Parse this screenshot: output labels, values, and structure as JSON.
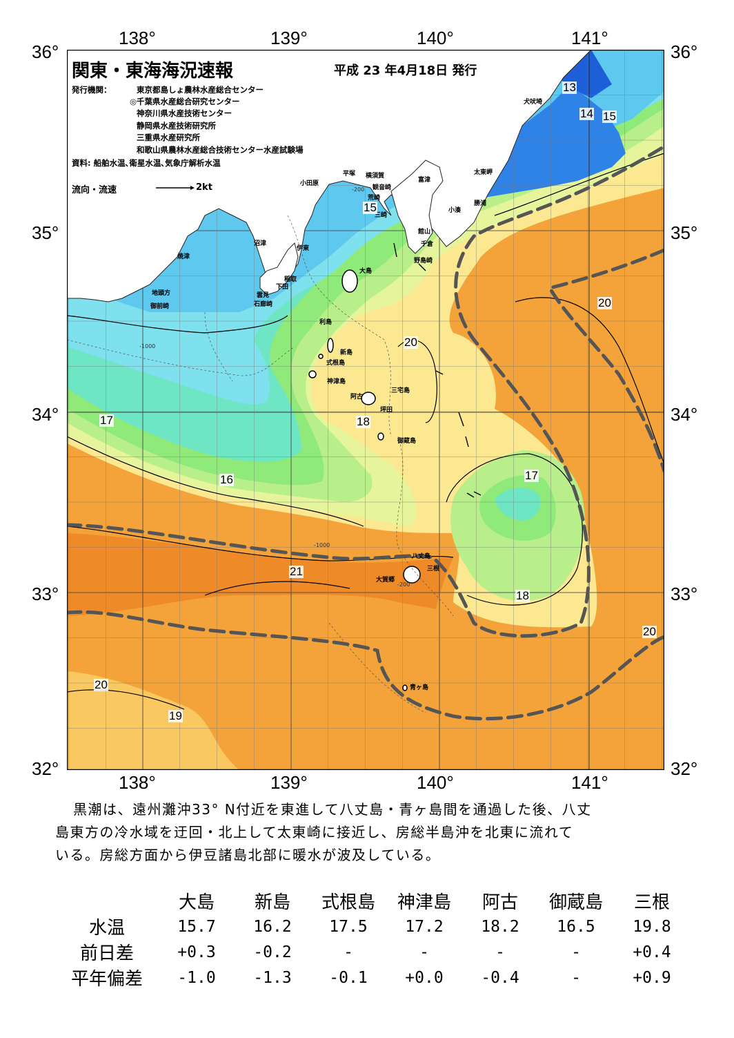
{
  "header": {
    "title": "関東・東海海況速報",
    "issue_date": "平成 23 年4月18日 発行",
    "issuer_label": "発行機関：",
    "issuers": [
      "東京都島しょ農林水産総合センター",
      "◎千葉県水産総合研究センター",
      "神奈川県水産技術センター",
      "静岡県水産技術研究所",
      "三重県水産研究所",
      "和歌山県農林水産総合技術センター水産試験場"
    ],
    "sources": "資料: 船舶水温､衛星水温､気象庁解析水温",
    "current_legend_label": "流向・流速",
    "current_legend_speed": "2kt"
  },
  "map": {
    "lon_labels": [
      "138°",
      "139°",
      "140°",
      "141°"
    ],
    "lat_labels": [
      "36°",
      "35°",
      "34°",
      "33°",
      "32°"
    ],
    "place_names": {
      "inubozaki": "犬吠埼",
      "taitozaki": "太東岬",
      "katsuura": "勝浦",
      "kominato": "小湊",
      "tateyama": "館山",
      "chikura": "千倉",
      "nojimazaki": "野島崎",
      "futtsu": "富津",
      "kannonzaki": "観音崎",
      "yokosuka": "横須賀",
      "hiratsuka": "平塚",
      "arasaki": "荒崎",
      "misaki": "三崎",
      "odawara": "小田原",
      "numazu": "沼津",
      "ito": "伊東",
      "yaizu": "焼津",
      "inatori": "稲取",
      "shimoda": "下田",
      "mera": "雲見",
      "irozaki": "石廊崎",
      "jitogata": "地頭方",
      "omaezaki": "御前崎",
      "oshima": "大島",
      "toshima": "利島",
      "niijima": "新島",
      "shikinejima": "式根島",
      "kozushima": "神津島",
      "miyakejima": "三宅島",
      "ako": "阿古",
      "tsubota": "坪田",
      "mikurajima": "御蔵島",
      "hachijojima": "八丈島",
      "mitsune": "三根",
      "okago": "大賀郷",
      "aogashima": "青ヶ島"
    },
    "isotherm_labels": [
      "13",
      "14",
      "15",
      "15",
      "16",
      "17",
      "17",
      "18",
      "18",
      "19",
      "20",
      "20",
      "20",
      "20",
      "21"
    ],
    "depth_labels": [
      "-200",
      "-1000"
    ],
    "colors": {
      "t_lt13": "#1c5fd6",
      "t13": "#2f82e6",
      "t14": "#5ec8ef",
      "t15": "#7fe0ee",
      "t16": "#6ee6c4",
      "t16_5": "#8fea7a",
      "t17": "#b8ef8a",
      "t17_5": "#e6f59c",
      "t18": "#fbe890",
      "t19": "#f9c860",
      "t20": "#f3a33a",
      "t21": "#ee8a28",
      "kuroshio_axis": "#555555",
      "land": "#ffffff"
    }
  },
  "summary": {
    "lines": [
      "黒潮は、遠州灘沖33° N付近を東進して八丈島・青ヶ島間を通過した後、八丈",
      "島東方の冷水域を迂回・北上して太東崎に接近し、房総半島沖を北東に流れて",
      "いる。房総方面から伊豆諸島北部に暖水が波及している。"
    ]
  },
  "table": {
    "stations": [
      "大島",
      "新島",
      "式根島",
      "神津島",
      "阿古",
      "御蔵島",
      "三根"
    ],
    "rows": [
      {
        "label": "水温",
        "values": [
          "15.7",
          "16.2",
          "17.5",
          "17.2",
          "18.2",
          "16.5",
          "19.8"
        ]
      },
      {
        "label": "前日差",
        "values": [
          "+0.3",
          "-0.2",
          "-",
          "-",
          "-",
          "-",
          "+0.4"
        ]
      },
      {
        "label": "平年偏差",
        "values": [
          "-1.0",
          "-1.3",
          "-0.1",
          "+0.0",
          "-0.4",
          "-",
          "+0.9"
        ]
      }
    ]
  }
}
